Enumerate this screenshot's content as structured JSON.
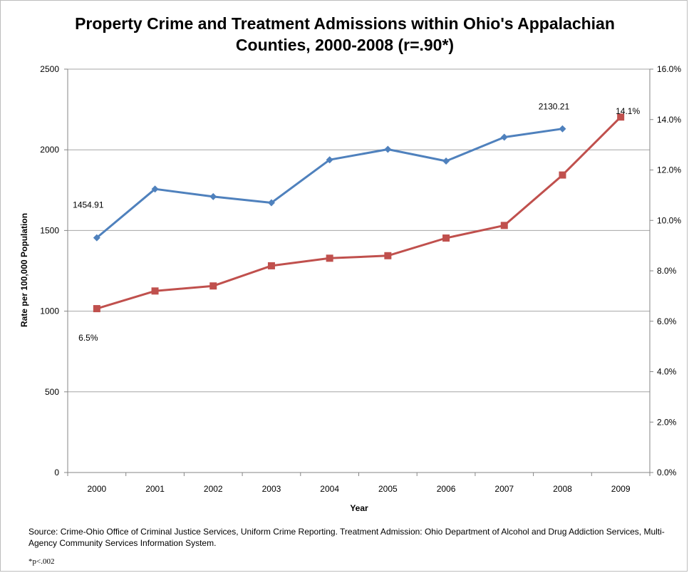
{
  "chart_data": {
    "type": "line",
    "title": "Property Crime and Treatment Admissions within Ohio's Appalachian Counties, 2000-2008 (r=.90*)",
    "xlabel": "Year",
    "ylabel": "Rate per 100,000 Population",
    "categories": [
      "2000",
      "2001",
      "2002",
      "2003",
      "2004",
      "2005",
      "2006",
      "2007",
      "2008",
      "2009"
    ],
    "y_left": {
      "range": [
        0,
        2500
      ],
      "ticks": [
        "0",
        "500",
        "1000",
        "1500",
        "2000",
        "2500"
      ]
    },
    "y_right": {
      "range": [
        0,
        16
      ],
      "ticks": [
        "0.0%",
        "2.0%",
        "4.0%",
        "6.0%",
        "8.0%",
        "10.0%",
        "12.0%",
        "14.0%",
        "16.0%"
      ]
    },
    "grid": true,
    "series": [
      {
        "axis": "left",
        "color": "#4f81bd",
        "marker": "diamond",
        "values": [
          1454.91,
          1757,
          1710,
          1672,
          1938,
          2003,
          1930,
          2078,
          2130.21,
          null
        ]
      },
      {
        "axis": "right",
        "color": "#c0504d",
        "marker": "square",
        "values": [
          6.5,
          7.2,
          7.4,
          8.2,
          8.5,
          8.6,
          9.3,
          9.8,
          11.8,
          14.1
        ]
      }
    ],
    "annotations": [
      {
        "text": "1454.91",
        "series": 0,
        "index": 0
      },
      {
        "text": "2130.21",
        "series": 0,
        "index": 8
      },
      {
        "text": "6.5%",
        "series": 1,
        "index": 0
      },
      {
        "text": "14.1%",
        "series": 1,
        "index": 9
      }
    ]
  },
  "source_text": "Source:  Crime-Ohio Office of Criminal Justice Services, Uniform Crime Reporting.  Treatment Admission:  Ohio Department of Alcohol and Drug Addiction Services, Multi-Agency Community Services Information System.",
  "footnote": "*p<.002"
}
